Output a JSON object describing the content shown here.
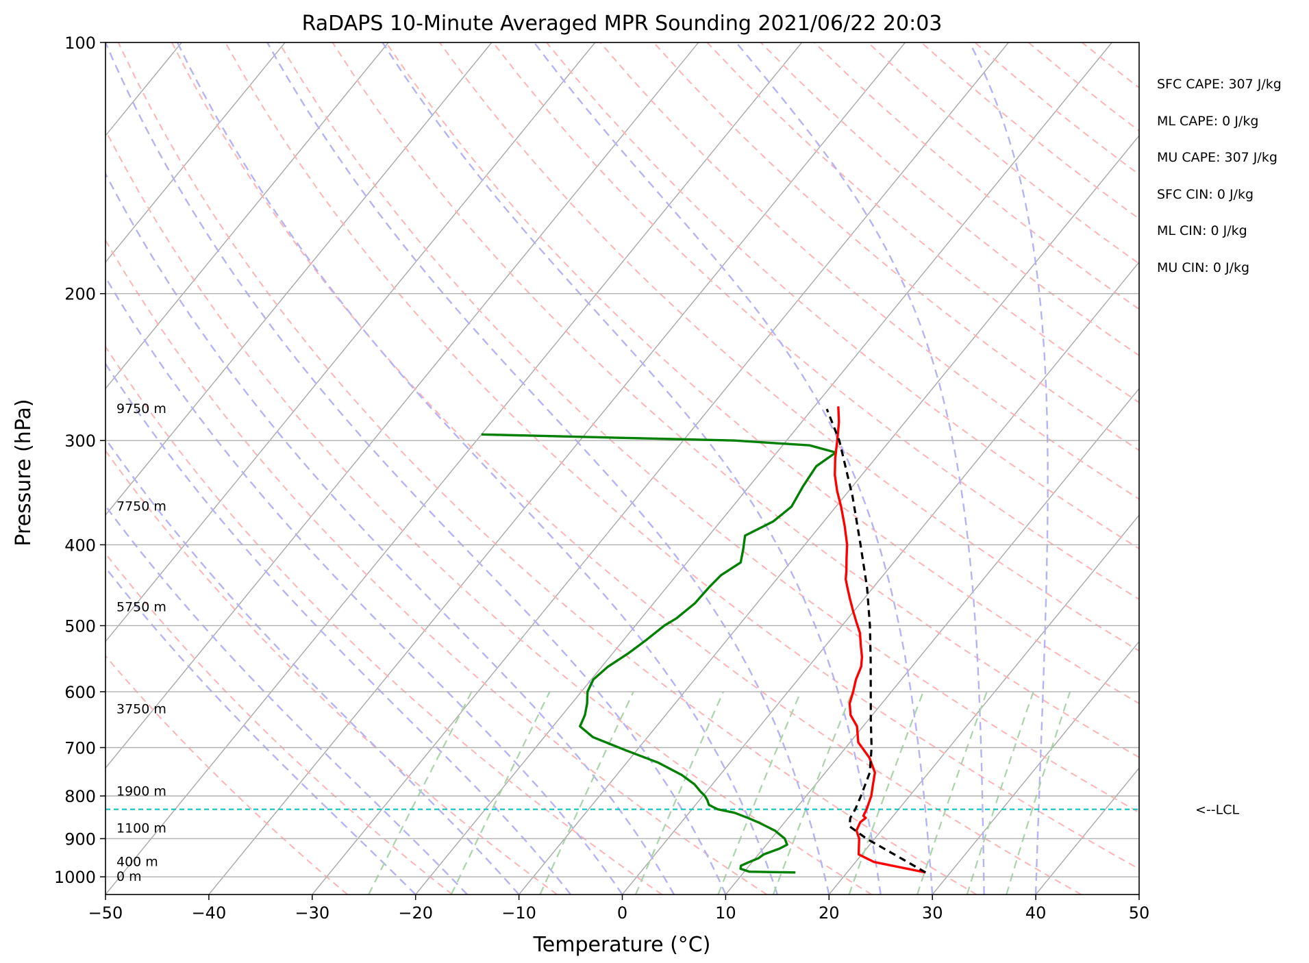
{
  "chart_data": {
    "type": "line",
    "diagram": "skew-T log-P",
    "title": "RaDAPS 10-Minute Averaged MPR Sounding 2021/06/22 20:03",
    "xlabel": "Temperature (°C)",
    "ylabel": "Pressure (hPa)",
    "xlim": [
      -50,
      50
    ],
    "ylim": [
      1050,
      100
    ],
    "y_scale": "log",
    "x_ticks": [
      -50,
      -40,
      -30,
      -20,
      -10,
      0,
      10,
      20,
      30,
      40,
      50
    ],
    "x_tick_labels": [
      "−50",
      "−40",
      "−30",
      "−20",
      "−10",
      "0",
      "10",
      "20",
      "30",
      "40",
      "50"
    ],
    "y_ticks": [
      100,
      200,
      300,
      400,
      500,
      600,
      700,
      800,
      900,
      1000
    ],
    "y_tick_labels": [
      "100",
      "200",
      "300",
      "400",
      "500",
      "600",
      "700",
      "800",
      "900",
      "1000"
    ],
    "grid": true,
    "colors": {
      "temperature": "#ff0000",
      "dewpoint": "#008000",
      "parcel": "#000000",
      "lcl": "#00bfbf",
      "isotherm": "#a8a8a8",
      "dry_adiabat": "#ffb3b3",
      "moist_adiabat": "#b3b3f5",
      "mixing_ratio": "#a8d4a8"
    },
    "series": [
      {
        "key": "temperature",
        "pressure": [
          988,
          960,
          940,
          920,
          900,
          880,
          860,
          850,
          845,
          830,
          815,
          800,
          780,
          750,
          720,
          690,
          660,
          640,
          620,
          600,
          580,
          560,
          545,
          530,
          510,
          495,
          480,
          465,
          450,
          440,
          430,
          415,
          400,
          380,
          360,
          345,
          330,
          315,
          300,
          285,
          273
        ],
        "values": [
          27.6,
          21.8,
          19.7,
          19.1,
          18.5,
          17.6,
          17.3,
          17.5,
          17.1,
          16.9,
          16.6,
          16.3,
          15.7,
          14.8,
          13.1,
          10.8,
          9.4,
          7.9,
          6.9,
          6.3,
          5.6,
          5.1,
          4.4,
          3.5,
          2.3,
          1.1,
          -0.1,
          -1.3,
          -2.5,
          -3.3,
          -3.9,
          -4.9,
          -5.9,
          -7.6,
          -9.5,
          -11.1,
          -12.6,
          -13.9,
          -15.1,
          -16.4,
          -17.7
        ]
      },
      {
        "key": "dewpoint",
        "pressure": [
          988,
          986,
          978,
          970,
          962,
          950,
          940,
          925,
          915,
          900,
          880,
          860,
          850,
          838,
          830,
          820,
          810,
          800,
          790,
          775,
          755,
          730,
          705,
          680,
          660,
          640,
          620,
          600,
          580,
          560,
          540,
          520,
          500,
          490,
          470,
          450,
          435,
          420,
          405,
          390,
          375,
          360,
          340,
          322,
          310,
          304,
          300,
          295
        ],
        "values": [
          15,
          10.5,
          9.4,
          9.2,
          9.6,
          10.3,
          10.5,
          11.6,
          12,
          11.3,
          9.7,
          7.4,
          6.1,
          4.4,
          2.5,
          1.3,
          0.8,
          0.2,
          -0.6,
          -1.7,
          -3.7,
          -6.9,
          -11.1,
          -15.3,
          -17.4,
          -17.8,
          -18.5,
          -19.4,
          -19.8,
          -19.4,
          -18.5,
          -17.8,
          -17.2,
          -16.6,
          -16.0,
          -15.9,
          -15.7,
          -14.8,
          -15.6,
          -16.5,
          -14.9,
          -14.3,
          -14.8,
          -15.1,
          -14.3,
          -17.4,
          -25.0,
          -50.0
        ]
      },
      {
        "key": "parcel",
        "pressure": [
          988,
          950,
          900,
          870,
          850,
          830,
          800,
          750,
          700,
          650,
          600,
          550,
          500,
          450,
          400,
          350,
          300,
          275
        ],
        "values": [
          27.6,
          24.1,
          19.2,
          16.6,
          16.0,
          15.8,
          15.3,
          14.3,
          12.5,
          10.3,
          8.0,
          5.5,
          2.7,
          -0.6,
          -4.6,
          -9.2,
          -14.9,
          -18.6
        ]
      }
    ],
    "lcl_pressure": 830,
    "lcl_label": "<--LCL",
    "height_labels": [
      {
        "text": "0 m",
        "pressure": 1000
      },
      {
        "text": "400 m",
        "pressure": 960
      },
      {
        "text": "1100 m",
        "pressure": 875
      },
      {
        "text": "1900 m",
        "pressure": 790
      },
      {
        "text": "3750 m",
        "pressure": 630
      },
      {
        "text": "5750 m",
        "pressure": 475
      },
      {
        "text": "7750 m",
        "pressure": 360
      },
      {
        "text": "9750 m",
        "pressure": 275
      }
    ],
    "indices": [
      "SFC CAPE: 307 J/kg",
      "ML CAPE: 0 J/kg",
      "MU CAPE: 307 J/kg",
      "SFC CIN: 0 J/kg",
      "ML CIN: 0 J/kg",
      "MU CIN: 0 J/kg"
    ]
  }
}
